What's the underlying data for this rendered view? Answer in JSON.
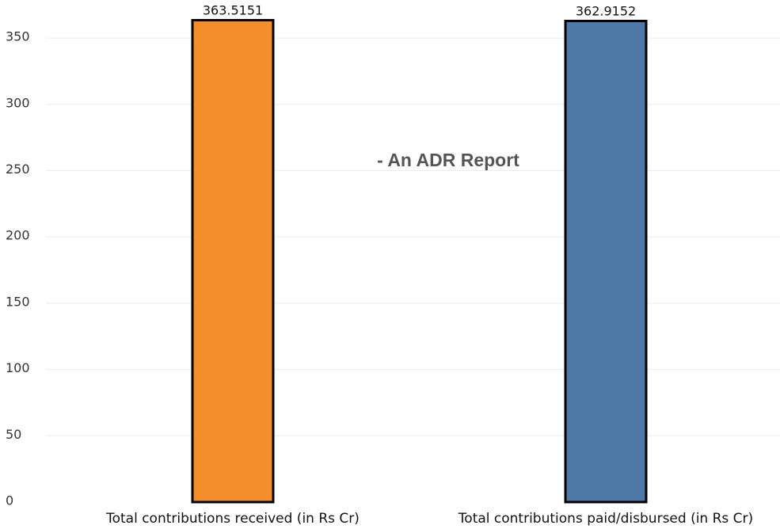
{
  "chart_data": {
    "type": "bar",
    "title": "",
    "xlabel": "",
    "ylabel": "",
    "categories": [
      "Total contributions received (in Rs Cr)",
      "Total contributions paid/disbursed (in Rs Cr)"
    ],
    "values": [
      363.5151,
      362.9152
    ],
    "value_labels": [
      "363.5151",
      "362.9152"
    ],
    "bar_colors": [
      "#f28e2b",
      "#4e79a7"
    ],
    "ylim": [
      0,
      350
    ],
    "yticks": [
      0,
      50,
      100,
      150,
      200,
      250,
      300,
      350
    ],
    "ytick_labels": [
      "0",
      "50",
      "100",
      "150",
      "200",
      "250",
      "300",
      "350"
    ],
    "grid": true,
    "annotation": "- An ADR Report"
  }
}
